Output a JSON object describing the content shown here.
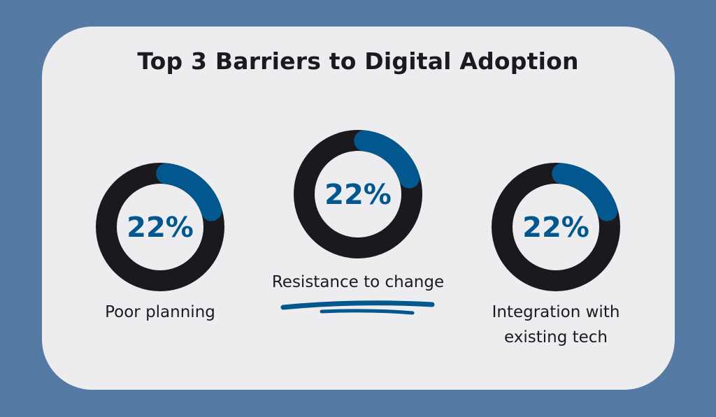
{
  "chart_data": {
    "type": "donut",
    "title": "Top 3 Barriers to Digital Adoption",
    "items": [
      {
        "label": "Poor planning",
        "value": 22,
        "display": "22%"
      },
      {
        "label": "Resistance to change",
        "value": 22,
        "display": "22%"
      },
      {
        "label": "Integration with existing tech",
        "label_lines": [
          "Integration with",
          "existing tech"
        ],
        "value": 22,
        "display": "22%"
      }
    ],
    "colors": {
      "accent": "#02578f",
      "track": "#1a1a1e",
      "background": "#557ba5",
      "card": "#ededf0"
    }
  }
}
